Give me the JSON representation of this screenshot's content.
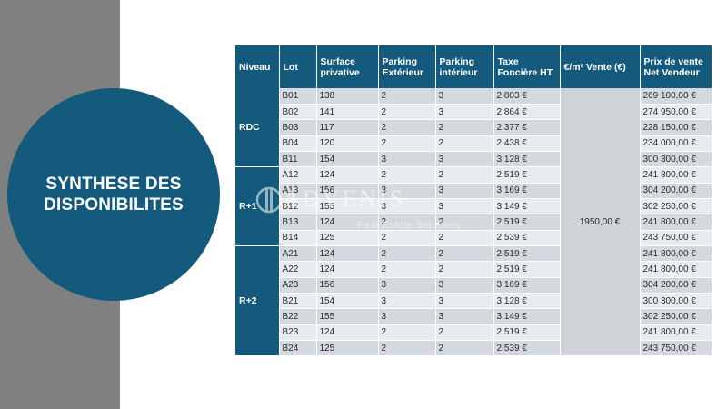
{
  "title": "SYNTHESE DES DISPONIBILITES",
  "watermark": {
    "brand": "ADVENIS",
    "subtitle": "Real Estate Solutions"
  },
  "colors": {
    "primary": "#145a7c",
    "gray_band": "#808080",
    "row_odd": "#d3d9df",
    "row_even": "#e9ecef"
  },
  "table": {
    "headers": {
      "niveau": "Niveau",
      "lot": "Lot",
      "surface": "Surface privative",
      "parking_ext": "Parking Extérieur",
      "parking_int": "Parking intérieur",
      "taxe": "Taxe Foncière HT",
      "prix_m2": "€/m² Vente (€)",
      "prix_vente": "Prix de vente Net Vendeur"
    },
    "price_per_m2": "1950,00 €",
    "groups": [
      {
        "level": "RDC",
        "rows": [
          {
            "lot": "B01",
            "surface": "138",
            "parking_ext": "2",
            "parking_int": "3",
            "taxe": "2 803 €",
            "prix": "269 100,00 €"
          },
          {
            "lot": "B02",
            "surface": "141",
            "parking_ext": "2",
            "parking_int": "3",
            "taxe": "2 864 €",
            "prix": "274 950,00 €"
          },
          {
            "lot": "B03",
            "surface": "117",
            "parking_ext": "2",
            "parking_int": "2",
            "taxe": "2 377 €",
            "prix": "228 150,00 €"
          },
          {
            "lot": "B04",
            "surface": "120",
            "parking_ext": "2",
            "parking_int": "2",
            "taxe": "2 438 €",
            "prix": "234 000,00 €"
          },
          {
            "lot": "B11",
            "surface": "154",
            "parking_ext": "3",
            "parking_int": "3",
            "taxe": "3 128 €",
            "prix": "300 300,00 €"
          }
        ]
      },
      {
        "level": "R+1",
        "rows": [
          {
            "lot": "A12",
            "surface": "124",
            "parking_ext": "2",
            "parking_int": "2",
            "taxe": "2 519 €",
            "prix": "241 800,00 €"
          },
          {
            "lot": "A13",
            "surface": "156",
            "parking_ext": "3",
            "parking_int": "3",
            "taxe": "3 169 €",
            "prix": "304 200,00 €"
          },
          {
            "lot": "B12",
            "surface": "155",
            "parking_ext": "3",
            "parking_int": "3",
            "taxe": "3 149 €",
            "prix": "302 250,00 €"
          },
          {
            "lot": "B13",
            "surface": "124",
            "parking_ext": "2",
            "parking_int": "2",
            "taxe": "2 519 €",
            "prix": "241 800,00 €"
          },
          {
            "lot": "B14",
            "surface": "125",
            "parking_ext": "2",
            "parking_int": "2",
            "taxe": "2 539 €",
            "prix": "243 750,00 €"
          }
        ]
      },
      {
        "level": "R+2",
        "rows": [
          {
            "lot": "A21",
            "surface": "124",
            "parking_ext": "2",
            "parking_int": "2",
            "taxe": "2 519 €",
            "prix": "241 800,00 €"
          },
          {
            "lot": "A22",
            "surface": "124",
            "parking_ext": "2",
            "parking_int": "2",
            "taxe": "2 519 €",
            "prix": "241 800,00 €"
          },
          {
            "lot": "A23",
            "surface": "156",
            "parking_ext": "3",
            "parking_int": "3",
            "taxe": "3 169 €",
            "prix": "304 200,00 €"
          },
          {
            "lot": "B21",
            "surface": "154",
            "parking_ext": "3",
            "parking_int": "3",
            "taxe": "3 128 €",
            "prix": "300 300,00 €"
          },
          {
            "lot": "B22",
            "surface": "155",
            "parking_ext": "3",
            "parking_int": "3",
            "taxe": "3 149 €",
            "prix": "302 250,00 €"
          },
          {
            "lot": "B23",
            "surface": "124",
            "parking_ext": "2",
            "parking_int": "2",
            "taxe": "2 519 €",
            "prix": "241 800,00 €"
          },
          {
            "lot": "B24",
            "surface": "125",
            "parking_ext": "2",
            "parking_int": "2",
            "taxe": "2 539 €",
            "prix": "243 750,00 €"
          }
        ]
      }
    ]
  }
}
